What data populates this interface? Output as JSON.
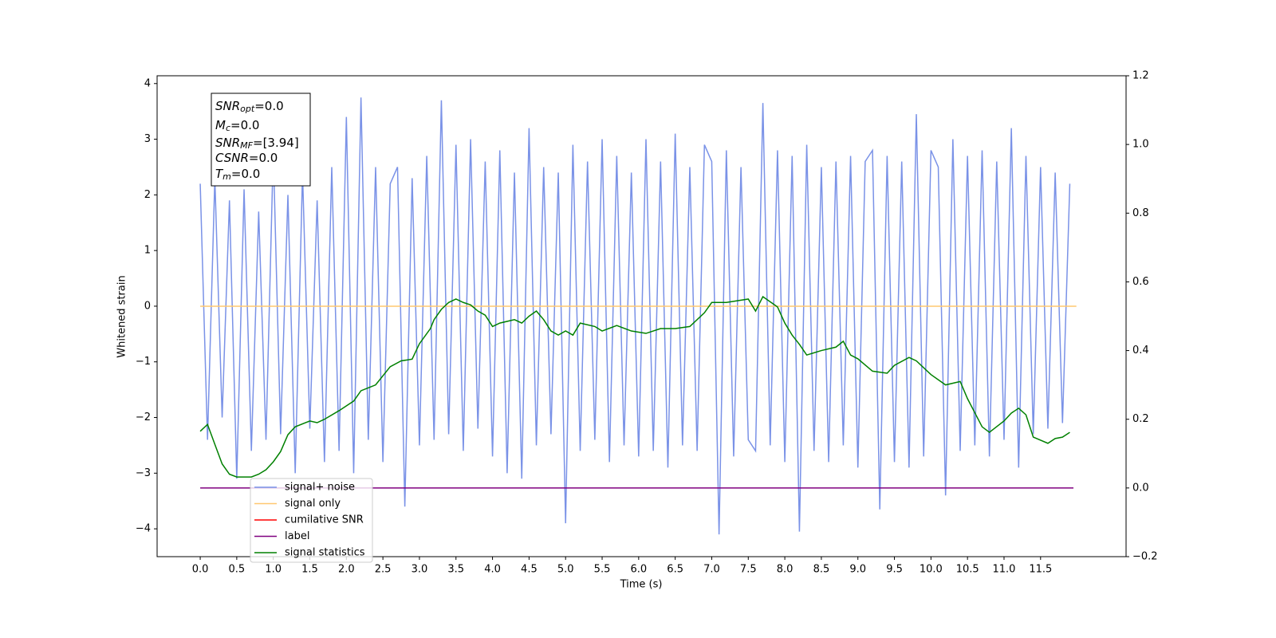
{
  "chart_data": {
    "type": "line",
    "xlabel": "Time (s)",
    "ylabel": "Whitened strain",
    "xlim": [
      -0.59,
      12.67
    ],
    "ylim": [
      -4.5,
      4.14
    ],
    "y2lim": [
      -0.2,
      1.2
    ],
    "xticks": [
      {
        "value": 0,
        "label": "0.0"
      },
      0.5,
      {
        "value": 1,
        "label": "1.0"
      },
      1.5,
      {
        "value": 2,
        "label": "2.0"
      },
      2.5,
      {
        "value": 3,
        "label": "3.0"
      },
      3.5,
      {
        "value": 4,
        "label": "4.0"
      },
      4.5,
      {
        "value": 5,
        "label": "5.0"
      },
      5.5,
      {
        "value": 6,
        "label": "6.0"
      },
      6.5,
      {
        "value": 7,
        "label": "7.0"
      },
      7.5,
      {
        "value": 8,
        "label": "8.0"
      },
      8.5,
      {
        "value": 9,
        "label": "9.0"
      },
      9.5,
      {
        "value": 10,
        "label": "10.0"
      },
      10.5,
      {
        "value": 11,
        "label": "11.0"
      },
      11.5
    ],
    "yticks": [
      {
        "value": -4,
        "label": "−4"
      },
      {
        "value": -3,
        "label": "−3"
      },
      {
        "value": -2,
        "label": "−2"
      },
      {
        "value": -1,
        "label": "−1"
      },
      0,
      1,
      2,
      3,
      4
    ],
    "y2ticks": [
      {
        "value": -0.2,
        "label": "−0.2"
      },
      {
        "value": 0,
        "label": "0.0"
      },
      0.2,
      0.4,
      0.6,
      0.8,
      {
        "value": 1,
        "label": "1.0"
      },
      1.2
    ],
    "legend": "lower left",
    "annotations": [
      {
        "symbol": "SNR",
        "subscript": "opt",
        "text": "=0.0"
      },
      {
        "symbol": "M",
        "subscript": "c",
        "text": "=0.0"
      },
      {
        "symbol": "SNR",
        "subscript": "MF",
        "text": "=[3.94]"
      },
      {
        "symbol": "CSNR",
        "text": "=0.0"
      },
      {
        "symbol": "T",
        "subscript": "m",
        "text": "=0.0"
      }
    ],
    "series": [
      {
        "name": "signal+ noise",
        "color": "#7a92e7",
        "x": [
          0,
          0.1,
          0.2,
          0.3,
          0.4,
          0.5,
          0.6,
          0.7,
          0.8,
          0.9,
          1,
          1.1,
          1.2,
          1.3,
          1.4,
          1.5,
          1.6,
          1.7,
          1.8,
          1.9,
          2,
          2.1,
          2.2,
          2.3,
          2.4,
          2.5,
          2.6,
          2.7,
          2.8,
          2.9,
          3,
          3.1,
          3.2,
          3.3,
          3.4,
          3.5,
          3.6,
          3.7,
          3.8,
          3.9,
          4,
          4.1,
          4.2,
          4.3,
          4.4,
          4.5,
          4.6,
          4.7,
          4.8,
          4.9,
          5,
          5.1,
          5.2,
          5.3,
          5.4,
          5.5,
          5.6,
          5.7,
          5.8,
          5.9,
          6,
          6.1,
          6.2,
          6.3,
          6.4,
          6.5,
          6.6,
          6.7,
          6.8,
          6.9,
          7,
          7.1,
          7.2,
          7.3,
          7.4,
          7.5,
          7.6,
          7.7,
          7.8,
          7.9,
          8,
          8.1,
          8.2,
          8.3,
          8.4,
          8.5,
          8.6,
          8.7,
          8.8,
          8.9,
          9,
          9.1,
          9.2,
          9.3,
          9.4,
          9.5,
          9.6,
          9.7,
          9.8,
          9.9,
          10,
          10.1,
          10.2,
          10.3,
          10.4,
          10.5,
          10.6,
          10.7,
          10.8,
          10.9,
          11,
          11.1,
          11.2,
          11.3,
          11.4,
          11.5,
          11.6,
          11.7,
          11.8,
          11.9
        ],
        "values": [
          2.2,
          -2.4,
          2.3,
          -2.0,
          1.9,
          -3.1,
          2.1,
          -2.6,
          1.7,
          -2.4,
          2.8,
          -2.3,
          2.0,
          -3.0,
          2.4,
          -2.2,
          1.9,
          -2.8,
          2.5,
          -2.6,
          3.4,
          -3.0,
          3.75,
          -2.4,
          2.5,
          -2.8,
          2.2,
          2.5,
          -3.6,
          2.3,
          -2.5,
          2.7,
          -2.4,
          3.7,
          -2.3,
          2.9,
          -2.6,
          3.0,
          -2.2,
          2.6,
          -2.7,
          2.8,
          -3.0,
          2.4,
          -3.1,
          3.2,
          -2.5,
          2.5,
          -2.3,
          2.4,
          -3.9,
          2.9,
          -2.6,
          2.6,
          -2.4,
          3.0,
          -2.8,
          2.7,
          -2.5,
          2.4,
          -2.7,
          3.0,
          -2.6,
          2.6,
          -2.9,
          3.1,
          -2.5,
          2.5,
          -2.6,
          2.9,
          2.6,
          -4.1,
          2.8,
          -2.7,
          2.5,
          -2.4,
          -2.6,
          3.65,
          -2.5,
          2.8,
          -2.8,
          2.7,
          -4.05,
          2.9,
          -2.6,
          2.5,
          -2.8,
          2.6,
          -2.5,
          2.7,
          -2.9,
          2.6,
          2.8,
          -3.65,
          2.7,
          -2.8,
          2.6,
          -2.9,
          3.45,
          -2.7,
          2.8,
          2.5,
          -3.4,
          3.0,
          -2.6,
          2.7,
          -2.5,
          2.8,
          -2.7,
          2.6,
          -2.4,
          3.2,
          -2.9,
          2.7,
          -2.3,
          2.5,
          -2.2,
          2.4,
          -2.1,
          2.2
        ]
      },
      {
        "name": "signal only",
        "color": "#ffc870",
        "x": [
          0,
          11.99
        ],
        "values": [
          0,
          0
        ]
      },
      {
        "name": "cumilative SNR",
        "color": "#ff0000",
        "x": [],
        "values": []
      },
      {
        "name": "label",
        "color": "#800080",
        "axis": "y2",
        "x": [
          0,
          11.95
        ],
        "values": [
          0,
          0
        ]
      },
      {
        "name": "signal statistics",
        "color": "#008000",
        "axis": "y2",
        "x": [
          0,
          0.1,
          0.2,
          0.3,
          0.4,
          0.5,
          0.7,
          0.8,
          0.9,
          1.0,
          1.1,
          1.2,
          1.3,
          1.5,
          1.6,
          1.7,
          1.9,
          2.1,
          2.2,
          2.4,
          2.6,
          2.75,
          2.9,
          3.0,
          3.15,
          3.2,
          3.3,
          3.4,
          3.5,
          3.6,
          3.7,
          3.8,
          3.9,
          4.0,
          4.1,
          4.3,
          4.4,
          4.5,
          4.6,
          4.7,
          4.8,
          4.9,
          5.0,
          5.1,
          5.2,
          5.4,
          5.5,
          5.7,
          5.9,
          6.1,
          6.3,
          6.5,
          6.7,
          6.9,
          7.0,
          7.2,
          7.5,
          7.6,
          7.7,
          7.9,
          8.0,
          8.1,
          8.2,
          8.3,
          8.5,
          8.7,
          8.8,
          8.9,
          9.0,
          9.2,
          9.4,
          9.5,
          9.7,
          9.8,
          10.0,
          10.2,
          10.4,
          10.5,
          10.7,
          10.8,
          11.0,
          11.1,
          11.2,
          11.3,
          11.4,
          11.6,
          11.7,
          11.8,
          11.9
        ],
        "values": [
          0.165,
          0.185,
          0.127,
          0.07,
          0.04,
          0.032,
          0.032,
          0.04,
          0.053,
          0.076,
          0.106,
          0.155,
          0.178,
          0.195,
          0.19,
          0.2,
          0.225,
          0.253,
          0.283,
          0.3,
          0.353,
          0.37,
          0.375,
          0.42,
          0.464,
          0.49,
          0.52,
          0.54,
          0.55,
          0.54,
          0.533,
          0.515,
          0.503,
          0.47,
          0.48,
          0.49,
          0.48,
          0.5,
          0.515,
          0.49,
          0.457,
          0.445,
          0.457,
          0.445,
          0.48,
          0.47,
          0.457,
          0.473,
          0.457,
          0.45,
          0.464,
          0.464,
          0.47,
          0.51,
          0.54,
          0.54,
          0.55,
          0.515,
          0.557,
          0.527,
          0.48,
          0.445,
          0.418,
          0.387,
          0.4,
          0.41,
          0.427,
          0.387,
          0.376,
          0.34,
          0.334,
          0.357,
          0.38,
          0.37,
          0.33,
          0.3,
          0.31,
          0.26,
          0.178,
          0.162,
          0.195,
          0.218,
          0.232,
          0.213,
          0.148,
          0.13,
          0.144,
          0.148,
          0.162
        ]
      }
    ]
  }
}
